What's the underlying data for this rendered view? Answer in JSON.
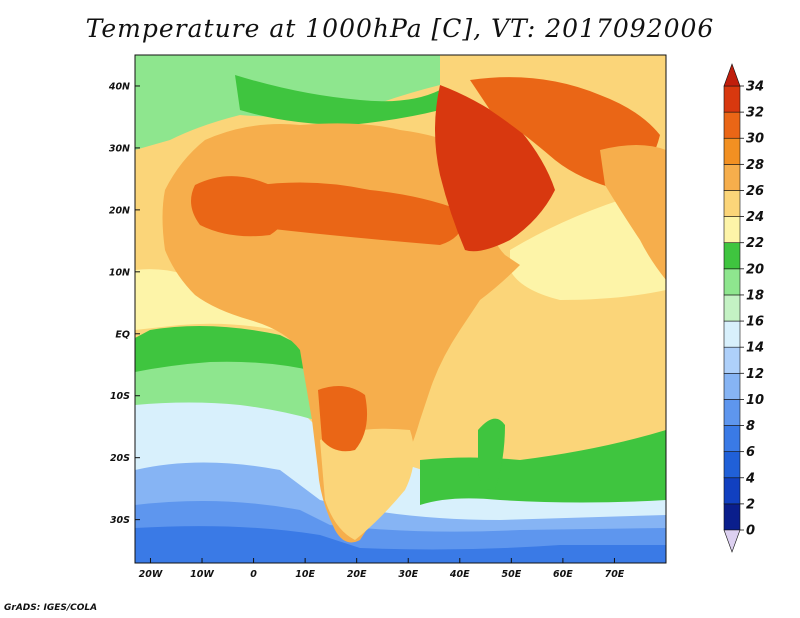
{
  "title": "Temperature at 1000hPa [C], VT: 2017092006",
  "credit": "GrADS: IGES/COLA",
  "map": {
    "lon_range": [
      -23,
      80
    ],
    "lat_range": [
      -37,
      45
    ],
    "ocean_color": "#fbd579"
  },
  "y_ticks": [
    {
      "lat": 40,
      "label": "40N"
    },
    {
      "lat": 30,
      "label": "30N"
    },
    {
      "lat": 20,
      "label": "20N"
    },
    {
      "lat": 10,
      "label": "10N"
    },
    {
      "lat": 0,
      "label": "EQ"
    },
    {
      "lat": -10,
      "label": "10S"
    },
    {
      "lat": -20,
      "label": "20S"
    },
    {
      "lat": -30,
      "label": "30S"
    }
  ],
  "x_ticks": [
    {
      "lon": -20,
      "label": "20W"
    },
    {
      "lon": -10,
      "label": "10W"
    },
    {
      "lon": 0,
      "label": "0"
    },
    {
      "lon": 10,
      "label": "10E"
    },
    {
      "lon": 20,
      "label": "20E"
    },
    {
      "lon": 30,
      "label": "30E"
    },
    {
      "lon": 40,
      "label": "40E"
    },
    {
      "lon": 50,
      "label": "50E"
    },
    {
      "lon": 60,
      "label": "60E"
    },
    {
      "lon": 70,
      "label": "70E"
    }
  ],
  "colorbar": {
    "levels": [
      {
        "value": 0,
        "label": "0",
        "color": "#dcd0f0"
      },
      {
        "value": 2,
        "label": "2",
        "color": "#0a1e8c"
      },
      {
        "value": 4,
        "label": "4",
        "color": "#1140c0"
      },
      {
        "value": 6,
        "label": "6",
        "color": "#2060d8"
      },
      {
        "value": 8,
        "label": "8",
        "color": "#3a7ae6"
      },
      {
        "value": 10,
        "label": "10",
        "color": "#5e96ee"
      },
      {
        "value": 12,
        "label": "12",
        "color": "#86b4f4"
      },
      {
        "value": 14,
        "label": "14",
        "color": "#aed0fa"
      },
      {
        "value": 16,
        "label": "16",
        "color": "#d8f0fc"
      },
      {
        "value": 18,
        "label": "18",
        "color": "#c4f2c4"
      },
      {
        "value": 20,
        "label": "20",
        "color": "#8ee68e"
      },
      {
        "value": 22,
        "label": "22",
        "color": "#3fc53f"
      },
      {
        "value": 24,
        "label": "24",
        "color": "#fdf4a8"
      },
      {
        "value": 26,
        "label": "26",
        "color": "#fbd579"
      },
      {
        "value": 28,
        "label": "28",
        "color": "#f6ae4c"
      },
      {
        "value": 30,
        "label": "30",
        "color": "#f29022"
      },
      {
        "value": 32,
        "label": "32",
        "color": "#ea6616"
      },
      {
        "value": 34,
        "label": "34",
        "color": "#d8380f"
      }
    ],
    "over_color": "#c01e0c"
  },
  "temperature_regions": [
    {
      "name": "south-ocean-band-8",
      "value": 8,
      "color": "#3a7ae6"
    },
    {
      "name": "south-ocean-band-10",
      "value": 10,
      "color": "#5e96ee"
    },
    {
      "name": "south-ocean-band-12",
      "value": 12,
      "color": "#86b4f4"
    },
    {
      "name": "south-ocean-band-16",
      "value": 16,
      "color": "#d8f0fc"
    },
    {
      "name": "south-atlantic-green",
      "value": 20,
      "color": "#8ee68e"
    },
    {
      "name": "gulf-of-guinea-green",
      "value": 22,
      "color": "#3fc53f"
    },
    {
      "name": "indian-ocean-green",
      "value": 22,
      "color": "#3fc53f"
    },
    {
      "name": "mediterranean-green",
      "value": 22,
      "color": "#3fc53f"
    },
    {
      "name": "atlantic-yellow",
      "value": 24,
      "color": "#fdf4a8"
    },
    {
      "name": "arabian-sea-yellow",
      "value": 24,
      "color": "#fdf4a8"
    },
    {
      "name": "africa-land",
      "value": 28,
      "color": "#f6ae4c"
    },
    {
      "name": "sahel-hot",
      "value": 32,
      "color": "#ea6616"
    },
    {
      "name": "sahara-west-hot",
      "value": 32,
      "color": "#ea6616"
    },
    {
      "name": "arabia-hot",
      "value": 34,
      "color": "#d8380f"
    },
    {
      "name": "southern-africa-warm",
      "value": 26,
      "color": "#fbd579"
    },
    {
      "name": "namibia-hot",
      "value": 32,
      "color": "#ea6616"
    },
    {
      "name": "iran-hot",
      "value": 32,
      "color": "#ea6616"
    },
    {
      "name": "india-warm",
      "value": 28,
      "color": "#f6ae4c"
    },
    {
      "name": "madagascar-green",
      "value": 22,
      "color": "#3fc53f"
    },
    {
      "name": "europe-green",
      "value": 20,
      "color": "#8ee68e"
    }
  ]
}
